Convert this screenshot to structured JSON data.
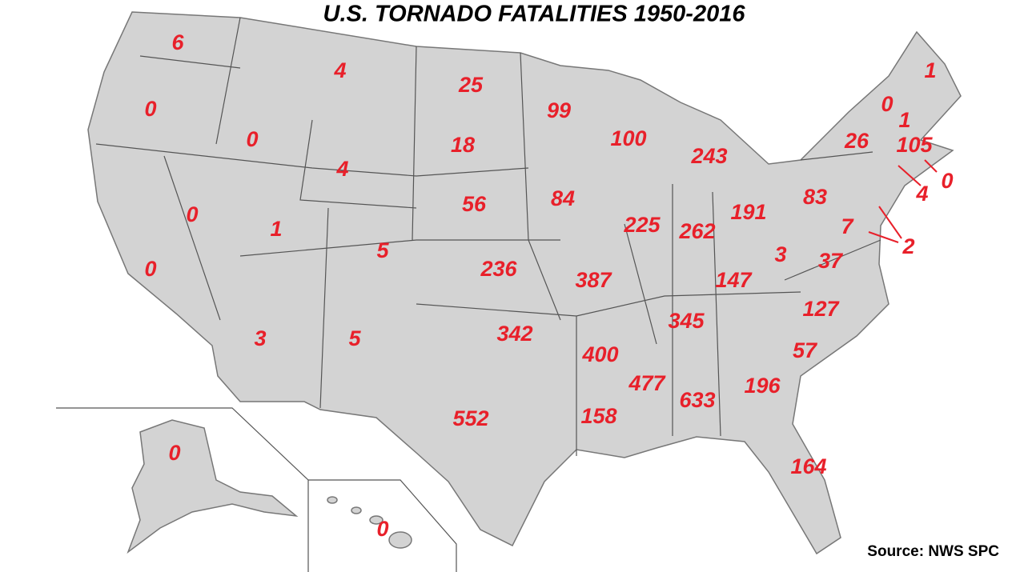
{
  "title": "U.S. TORNADO FATALITIES  1950-2016",
  "source": "Source: NWS SPC",
  "labels": [
    6,
    4,
    25,
    99,
    0,
    0,
    18,
    100,
    243,
    4,
    56,
    84,
    0,
    1,
    5,
    236,
    387,
    225,
    262,
    191,
    83,
    26,
    0,
    1,
    1,
    105,
    0,
    4,
    2,
    7,
    3,
    37,
    147,
    0,
    3,
    5,
    342,
    400,
    345,
    127,
    57,
    196,
    633,
    477,
    158,
    552,
    164,
    0,
    0
  ]
}
